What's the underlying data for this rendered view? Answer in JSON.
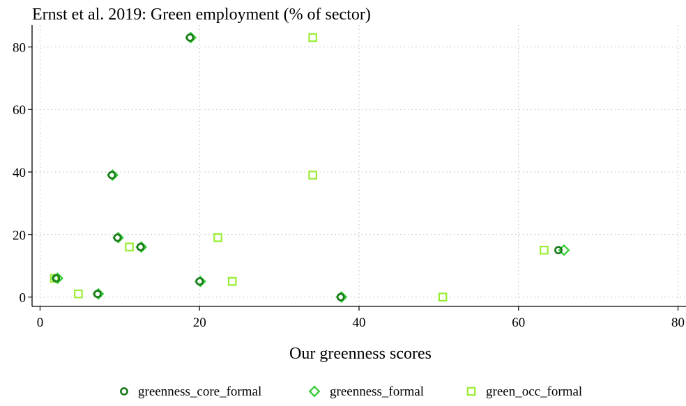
{
  "chart_data": {
    "type": "scatter",
    "title": "Ernst et al. 2019: Green employment (% of sector)",
    "xlabel": "Our greenness scores",
    "ylabel": "",
    "xlim": [
      -1,
      81
    ],
    "ylim": [
      -3,
      87
    ],
    "xticks": [
      0,
      20,
      40,
      60,
      80
    ],
    "yticks": [
      0,
      20,
      40,
      60,
      80
    ],
    "grid": true,
    "legend_position": "bottom",
    "series": [
      {
        "name": "greenness_core_formal",
        "marker": "circle",
        "color": "#1a7a1a",
        "points": [
          [
            2,
            6
          ],
          [
            7.2,
            1
          ],
          [
            9,
            39
          ],
          [
            9.7,
            19
          ],
          [
            12.6,
            16
          ],
          [
            18.8,
            83
          ],
          [
            20,
            5
          ],
          [
            37.7,
            0
          ],
          [
            65,
            15
          ]
        ]
      },
      {
        "name": "greenness_formal",
        "marker": "diamond",
        "color": "#33cc33",
        "points": [
          [
            2.2,
            6
          ],
          [
            7.3,
            1
          ],
          [
            9.1,
            39
          ],
          [
            9.8,
            19
          ],
          [
            12.7,
            16
          ],
          [
            18.9,
            83
          ],
          [
            20.1,
            5
          ],
          [
            37.8,
            0
          ],
          [
            65.7,
            15
          ]
        ]
      },
      {
        "name": "green_occ_formal",
        "marker": "square",
        "color": "#99ee33",
        "points": [
          [
            1.8,
            6
          ],
          [
            4.8,
            1
          ],
          [
            11.2,
            16
          ],
          [
            22.3,
            19
          ],
          [
            24.1,
            5
          ],
          [
            34.2,
            83
          ],
          [
            34.2,
            39
          ],
          [
            50.5,
            0
          ],
          [
            63.2,
            15
          ]
        ]
      }
    ]
  }
}
